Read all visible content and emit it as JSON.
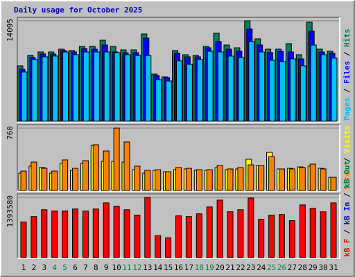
{
  "chart_data": {
    "type": "bar",
    "title": "Daily usage for October 2025",
    "title_color": "#0000c0",
    "legend_separator": "/",
    "categories": [
      "1",
      "2",
      "3",
      "4",
      "5",
      "6",
      "7",
      "8",
      "9",
      "10",
      "11",
      "12",
      "13",
      "14",
      "15",
      "16",
      "17",
      "18",
      "19",
      "20",
      "21",
      "22",
      "23",
      "24",
      "25",
      "26",
      "27",
      "28",
      "29",
      "30",
      "31"
    ],
    "category_label_colors": [
      "#000000",
      "#000000",
      "#000000",
      "#008040",
      "#008040",
      "#000000",
      "#000000",
      "#000000",
      "#000000",
      "#000000",
      "#008040",
      "#008040",
      "#000000",
      "#000000",
      "#000000",
      "#000000",
      "#000000",
      "#008040",
      "#008040",
      "#000000",
      "#000000",
      "#000000",
      "#000000",
      "#000000",
      "#008040",
      "#008040",
      "#000000",
      "#000000",
      "#000000",
      "#000000",
      "#000000"
    ],
    "panels": [
      {
        "ylim": [
          0,
          14095
        ],
        "yticks": [
          14095
        ],
        "legend_reversed": true,
        "series": [
          {
            "name": "Hits",
            "color": "#00805c",
            "values": [
              7776,
              9234,
              9720,
              9720,
              10110,
              9915,
              10498,
              10498,
              11373,
              10498,
              10012,
              10012,
              12248,
              6610,
              6221,
              9915,
              9332,
              9234,
              10498,
              12345,
              10693,
              10304,
              14095,
              11568,
              10110,
              10110,
              10887,
              9332,
              13900,
              10110,
              9818
            ]
          },
          {
            "name": "Files",
            "color": "#0000ff",
            "values": [
              7290,
              8940,
              9430,
              9430,
              9920,
              9720,
              10200,
              10110,
              10700,
              9720,
              9620,
              9620,
              11665,
              6410,
              6120,
              9530,
              9040,
              9040,
              10300,
              11180,
              10110,
              9820,
              12930,
              10690,
              9620,
              9820,
              9720,
              8750,
              12640,
              9720,
              9525
            ]
          },
          {
            "name": "Pages",
            "color": "#00c0ff",
            "values": [
              6900,
              8650,
              9040,
              9140,
              9720,
              9330,
              9720,
              9720,
              9720,
              9620,
              9330,
              9230,
              9234,
              5830,
              5640,
              8460,
              7970,
              8650,
              9820,
              9720,
              9135,
              8940,
              11180,
              9720,
              8550,
              8360,
              8750,
              7780,
              10690,
              9330,
              8840
            ]
          }
        ]
      },
      {
        "ylim": [
          0,
          760
        ],
        "yticks": [
          760
        ],
        "legend_reversed": true,
        "series": [
          {
            "name": "Visits",
            "color": "#ffff00",
            "values": [
              211,
              296,
              279,
              211,
              329,
              245,
              329,
              549,
              355,
              355,
              346,
              253,
              211,
              245,
              228,
              253,
              262,
              245,
              245,
              279,
              253,
              262,
              380,
              304,
              464,
              262,
              270,
              287,
              296,
              270,
              160
            ]
          },
          {
            "name": "Sites",
            "color": "#ff8000",
            "values": [
              236,
              346,
              270,
              236,
              372,
              270,
              363,
              557,
              481,
              760,
              591,
              296,
              245,
              253,
              228,
              279,
              270,
              253,
              253,
              304,
              262,
              279,
              312,
              304,
              413,
              262,
              262,
              279,
              321,
              262,
              160
            ]
          }
        ]
      },
      {
        "ylim": [
          0,
          1393580
        ],
        "yticks": [
          1393580
        ],
        "legend_reversed": false,
        "series": [
          {
            "name": "kB F",
            "color": "#ff0000",
            "values": [
              823479,
              950168,
              1108525,
              1076854,
              1076854,
              1124361,
              1076854,
              1124361,
              1266891,
              1187704,
              1108525,
              981839,
              1393580,
              506750,
              459263,
              965993,
              950168,
              1013509,
              1171869,
              1330226,
              1060999,
              1108525,
              1377745,
              886823,
              981839,
              997676,
              855153,
              1219379,
              1140205,
              1060999,
              1266891
            ]
          },
          {
            "name": "kB In",
            "color": "#0000ff",
            "values": [
              0,
              0,
              0,
              0,
              0,
              0,
              0,
              0,
              0,
              0,
              0,
              0,
              0,
              0,
              0,
              0,
              0,
              0,
              0,
              0,
              0,
              0,
              0,
              0,
              0,
              0,
              0,
              0,
              0,
              0,
              0
            ]
          },
          {
            "name": "kB Out",
            "color": "#008040",
            "values": [
              0,
              0,
              0,
              0,
              0,
              0,
              0,
              0,
              0,
              0,
              0,
              0,
              0,
              0,
              0,
              0,
              0,
              0,
              0,
              0,
              0,
              0,
              0,
              0,
              0,
              0,
              0,
              0,
              0,
              0,
              0
            ]
          }
        ]
      }
    ]
  }
}
